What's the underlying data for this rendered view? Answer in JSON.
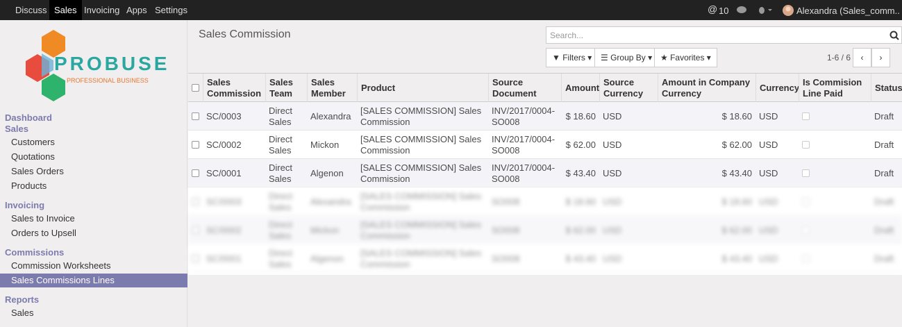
{
  "top_menu": {
    "items": [
      "Discuss",
      "Sales",
      "Invoicing",
      "Apps",
      "Settings"
    ],
    "mentions": "10",
    "user": "Alexandra (Sales_comm.."
  },
  "sidebar": {
    "logo": {
      "title": "PROBUSE",
      "subtitle": "PROFESSIONAL BUSINESS"
    },
    "sections": [
      {
        "title": "Dashboard",
        "items": []
      },
      {
        "title": "Sales",
        "items": [
          "Customers",
          "Quotations",
          "Sales Orders",
          "Products"
        ]
      },
      {
        "title": "Invoicing",
        "items": [
          "Sales to Invoice",
          "Orders to Upsell"
        ]
      },
      {
        "title": "Commissions",
        "items": [
          "Commission Worksheets",
          "Sales Commissions Lines"
        ]
      },
      {
        "title": "Reports",
        "items": [
          "Sales"
        ]
      }
    ]
  },
  "control_panel": {
    "breadcrumb": "Sales Commission",
    "search_placeholder": "Search...",
    "buttons": [
      "Filters",
      "Group By",
      "Favorites"
    ],
    "pager": "1-6 / 6"
  },
  "table": {
    "columns": [
      "Sales Commission",
      "Sales Team",
      "Sales Member",
      "Product",
      "Source Document",
      "Amount",
      "Source Currency",
      "Amount in Company Currency",
      "Currency",
      "Is Commision Line Paid",
      "Status"
    ],
    "rows": [
      [
        "SC/0003",
        "Direct Sales",
        "Alexandra",
        "[SALES COMMISSION] Sales Commission",
        "INV/2017/0004-SO008",
        "$ 18.60",
        "USD",
        "$ 18.60",
        "USD",
        "",
        "Draft"
      ],
      [
        "SC/0002",
        "Direct Sales",
        "Mickon",
        "[SALES COMMISSION] Sales Commission",
        "INV/2017/0004-SO008",
        "$ 62.00",
        "USD",
        "$ 62.00",
        "USD",
        "",
        "Draft"
      ],
      [
        "SC/0001",
        "Direct Sales",
        "Algenon",
        "[SALES COMMISSION] Sales Commission",
        "INV/2017/0004-SO008",
        "$ 43.40",
        "USD",
        "$ 43.40",
        "USD",
        "",
        "Draft"
      ]
    ],
    "blurred_rows": [
      [
        "SC/0003",
        "Direct Sales",
        "Alexandra",
        "[SALES COMMISSION] Sales Commission",
        "SO008",
        "$ 18.60",
        "USD",
        "$ 18.60",
        "USD",
        "",
        "Draft"
      ],
      [
        "SC/0002",
        "Direct Sales",
        "Mickon",
        "[SALES COMMISSION] Sales Commission",
        "SO008",
        "$ 62.00",
        "USD",
        "$ 62.00",
        "USD",
        "",
        "Draft"
      ],
      [
        "SC/0001",
        "Direct Sales",
        "Algenon",
        "[SALES COMMISSION] Sales Commission",
        "SO008",
        "$ 43.40",
        "USD",
        "$ 43.40",
        "USD",
        "",
        "Draft"
      ]
    ]
  }
}
